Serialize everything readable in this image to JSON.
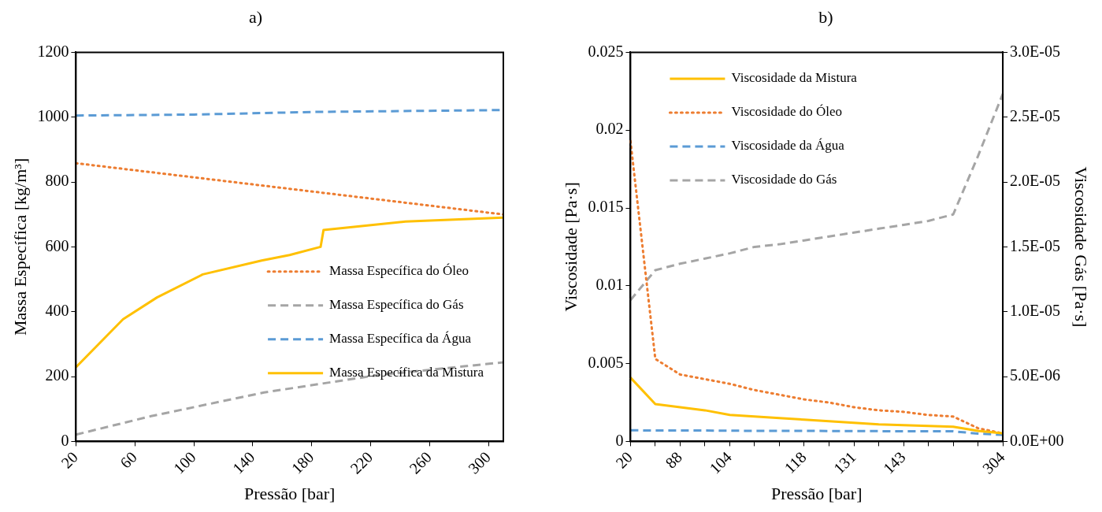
{
  "chart_data": [
    {
      "type": "line",
      "title": "a)",
      "xlabel": "Pressão [bar]",
      "ylabel": "Massa Específica [kg/m³]",
      "xlim": [
        20,
        310
      ],
      "xticks": [
        20,
        60,
        100,
        140,
        180,
        220,
        260,
        300
      ],
      "ylim": [
        0,
        1200
      ],
      "yticks": [
        0,
        200,
        400,
        600,
        800,
        1000,
        1200
      ],
      "grid": false,
      "legend": "right",
      "marker": "none",
      "series": [
        {
          "name": "Massa Específica do Óleo",
          "color": "#ed7d31",
          "line_style": "dotted",
          "x": [
            20,
            310
          ],
          "values": [
            858,
            700
          ]
        },
        {
          "name": "Massa Específica do Gás",
          "color": "#a5a5a5",
          "line_style": "dashed",
          "x": [
            20,
            71,
            147.6,
            224,
            310
          ],
          "values": [
            21,
            78,
            151,
            204,
            244
          ]
        },
        {
          "name": "Massa Específica da Água",
          "color": "#5b9bd5",
          "line_style": "dashed",
          "x": [
            20,
            100,
            180,
            310
          ],
          "values": [
            1005,
            1008,
            1016,
            1022
          ]
        },
        {
          "name": "Massa Específica da Mistura",
          "color": "#ffc000",
          "line_style": "solid",
          "x": [
            20,
            52,
            75,
            106,
            146,
            165,
            186,
            188,
            243.6,
            310
          ],
          "values": [
            229,
            377,
            444,
            515,
            558,
            575,
            600,
            652,
            678,
            690
          ]
        }
      ]
    },
    {
      "type": "line",
      "title": "b)",
      "xlabel": "Pressão [bar]",
      "ylabel": "Viscosidade [Pa·s]",
      "y2label": "Viscosidade Gás [Pa·s]",
      "categories": [
        "20",
        null,
        "88",
        null,
        "104",
        null,
        null,
        "118",
        null,
        "131",
        null,
        "143",
        null,
        null,
        null,
        "304"
      ],
      "ylim": [
        0,
        0.025
      ],
      "yticks": [
        0,
        0.005,
        0.01,
        0.015,
        0.02,
        0.025
      ],
      "y2lim": [
        0,
        3e-05
      ],
      "y2ticks": [
        {
          "value": 0,
          "label": "0.0E+00"
        },
        {
          "value": 5e-06,
          "label": "5.0E-06"
        },
        {
          "value": 1e-05,
          "label": "1.0E-05"
        },
        {
          "value": 1.5e-05,
          "label": "1.5E-05"
        },
        {
          "value": 2e-05,
          "label": "2.0E-05"
        },
        {
          "value": 2.5e-05,
          "label": "2.5E-05"
        },
        {
          "value": 3e-05,
          "label": "3.0E-05"
        }
      ],
      "grid": false,
      "legend": "top left",
      "marker": "none",
      "series": [
        {
          "name": "Viscosidade da Mistura",
          "color": "#ffc000",
          "line_style": "solid",
          "values": [
            0.0041,
            0.0024,
            0.0022,
            0.002,
            0.0017,
            0.0016,
            0.0015,
            0.0014,
            0.0013,
            0.0012,
            0.0011,
            0.00105,
            0.001,
            0.00094,
            0.00068,
            0.00052
          ]
        },
        {
          "name": "Viscosidade do Óleo",
          "color": "#ed7d31",
          "line_style": "dotted",
          "values": [
            0.0193,
            0.0053,
            0.0043,
            0.004,
            0.0037,
            0.0033,
            0.003,
            0.0027,
            0.0025,
            0.0022,
            0.002,
            0.0019,
            0.0017,
            0.0016,
            0.00085,
            0.00052
          ]
        },
        {
          "name": "Viscosidade da Água",
          "color": "#5b9bd5",
          "line_style": "dashed",
          "values": [
            0.00072,
            0.0007,
            0.0007,
            0.0007,
            0.00069,
            0.00068,
            0.00068,
            0.00068,
            0.00067,
            0.00066,
            0.00066,
            0.00065,
            0.00065,
            0.00065,
            0.0005,
            0.00042
          ]
        },
        {
          "name": "Viscosidade do Gás",
          "color": "#a5a5a5",
          "line_style": "dashed",
          "axis": "y2",
          "values": [
            1.09e-05,
            1.32e-05,
            1.37e-05,
            1.41e-05,
            1.45e-05,
            1.5e-05,
            1.52e-05,
            1.55e-05,
            1.58e-05,
            1.61e-05,
            1.64e-05,
            1.67e-05,
            1.7e-05,
            1.75e-05,
            2.2e-05,
            2.68e-05
          ]
        }
      ]
    }
  ]
}
